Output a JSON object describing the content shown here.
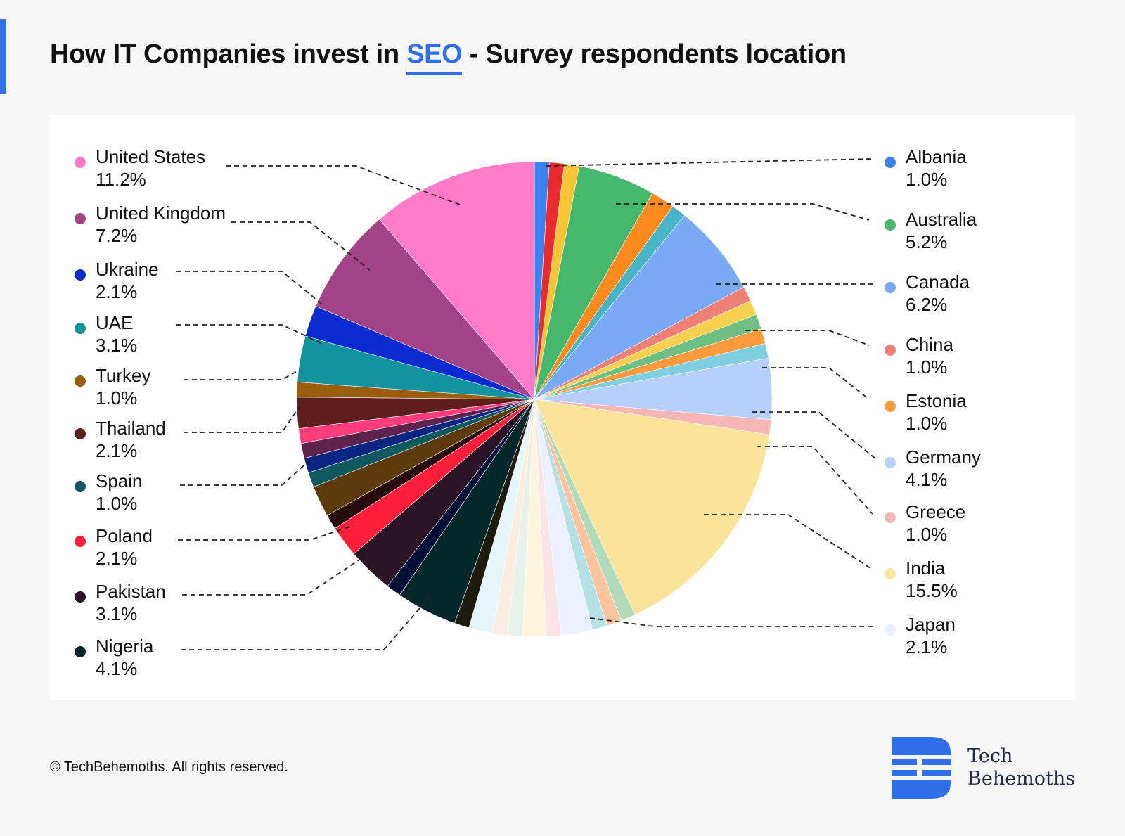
{
  "title": {
    "prefix": "How IT Companies invest in ",
    "highlight": "SEO",
    "suffix": " -  Survey respondents location"
  },
  "footer": {
    "copyright": "© TechBehemoths. All rights reserved."
  },
  "brand": {
    "line1": "Tech",
    "line2": "Behemoths",
    "color": "#2f6fe8"
  },
  "chart_data": {
    "type": "pie",
    "title": "How IT Companies invest in SEO - Survey respondents location",
    "legend_left": [
      {
        "name": "United States",
        "label": "11.2%",
        "color": "#ff7ac8"
      },
      {
        "name": "United Kingdom",
        "label": "7.2%",
        "color": "#a24487"
      },
      {
        "name": "Ukraine",
        "label": "2.1%",
        "color": "#0a2bd0"
      },
      {
        "name": "UAE",
        "label": "3.1%",
        "color": "#13939e"
      },
      {
        "name": "Turkey",
        "label": "1.0%",
        "color": "#985e0c"
      },
      {
        "name": "Thailand",
        "label": "2.1%",
        "color": "#5e1e1e"
      },
      {
        "name": "Spain",
        "label": "1.0%",
        "color": "#10595e"
      },
      {
        "name": "Poland",
        "label": "2.1%",
        "color": "#ff1f3a"
      },
      {
        "name": "Pakistan",
        "label": "3.1%",
        "color": "#2c1427"
      },
      {
        "name": "Nigeria",
        "label": "4.1%",
        "color": "#04272a"
      }
    ],
    "legend_right": [
      {
        "name": "Albania",
        "label": "1.0%",
        "color": "#3b82f0"
      },
      {
        "name": "Australia",
        "label": "5.2%",
        "color": "#45b86e"
      },
      {
        "name": "Canada",
        "label": "6.2%",
        "color": "#7aaaf5"
      },
      {
        "name": "China",
        "label": "1.0%",
        "color": "#ef8075"
      },
      {
        "name": "Estonia",
        "label": "1.0%",
        "color": "#ff9a3d"
      },
      {
        "name": "Germany",
        "label": "4.1%",
        "color": "#b6cffb"
      },
      {
        "name": "Greece",
        "label": "1.0%",
        "color": "#f5b7b5"
      },
      {
        "name": "India",
        "label": "15.5%",
        "color": "#fbe39a"
      },
      {
        "name": "Japan",
        "label": "2.1%",
        "color": "#eaf0fd"
      }
    ],
    "slices": [
      {
        "value": 1.0,
        "color": "#3b82f0"
      },
      {
        "value": 1.0,
        "color": "#ea2b2e"
      },
      {
        "value": 1.0,
        "color": "#f7c533"
      },
      {
        "value": 5.2,
        "color": "#45b86e"
      },
      {
        "value": 1.6,
        "color": "#ff8a1e"
      },
      {
        "value": 1.0,
        "color": "#47b5c6"
      },
      {
        "value": 6.2,
        "color": "#7aaaf5"
      },
      {
        "value": 1.0,
        "color": "#ef8075"
      },
      {
        "value": 1.0,
        "color": "#f8d04f"
      },
      {
        "value": 1.0,
        "color": "#6fbf82"
      },
      {
        "value": 1.0,
        "color": "#ff9a3d"
      },
      {
        "value": 1.0,
        "color": "#7fcfe0"
      },
      {
        "value": 4.1,
        "color": "#b6cffb"
      },
      {
        "value": 1.0,
        "color": "#f5b7b5"
      },
      {
        "value": 15.5,
        "color": "#fbe39a"
      },
      {
        "value": 1.0,
        "color": "#b2dbb9"
      },
      {
        "value": 1.0,
        "color": "#fbc49e"
      },
      {
        "value": 1.0,
        "color": "#b4e1e6"
      },
      {
        "value": 2.1,
        "color": "#eaf0fd"
      },
      {
        "value": 1.0,
        "color": "#fbe4e8"
      },
      {
        "value": 1.6,
        "color": "#fdf5dc"
      },
      {
        "value": 1.0,
        "color": "#e8f3e8"
      },
      {
        "value": 1.0,
        "color": "#fbece2"
      },
      {
        "value": 1.6,
        "color": "#e6f5f8"
      },
      {
        "value": 1.0,
        "color": "#1d1a0e"
      },
      {
        "value": 4.1,
        "color": "#04272a"
      },
      {
        "value": 1.0,
        "color": "#030f35"
      },
      {
        "value": 3.1,
        "color": "#2c1427"
      },
      {
        "value": 2.1,
        "color": "#ff1f3a"
      },
      {
        "value": 1.0,
        "color": "#270a0d"
      },
      {
        "value": 2.1,
        "color": "#5c3a0a"
      },
      {
        "value": 1.0,
        "color": "#10595e"
      },
      {
        "value": 1.0,
        "color": "#0a2682"
      },
      {
        "value": 1.0,
        "color": "#5e224e"
      },
      {
        "value": 1.0,
        "color": "#ff3c7c"
      },
      {
        "value": 2.1,
        "color": "#5e1e1e"
      },
      {
        "value": 1.0,
        "color": "#985e0c"
      },
      {
        "value": 3.1,
        "color": "#13939e"
      },
      {
        "value": 2.1,
        "color": "#0a2bd0"
      },
      {
        "value": 7.2,
        "color": "#a24487"
      },
      {
        "value": 11.2,
        "color": "#ff7ac8"
      }
    ]
  }
}
